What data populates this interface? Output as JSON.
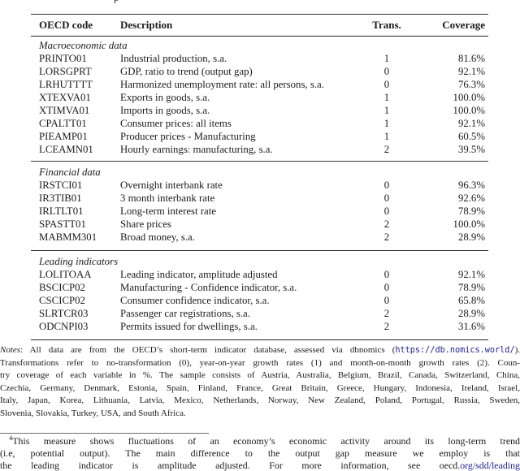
{
  "page": {
    "top_fragment": "p"
  },
  "colors": {
    "text": "#1b1b1b",
    "link_blue": "#23238c",
    "rule_dark": "#2a2a2a"
  },
  "table": {
    "headers": {
      "code": "OECD code",
      "description": "Description",
      "trans": "Trans.",
      "coverage": "Coverage"
    },
    "sections": [
      {
        "label": "Macroeconomic data",
        "rows": [
          {
            "code": "PRINTO01",
            "desc": "Industrial production, s.a.",
            "trans": "1",
            "coverage": "81.6%"
          },
          {
            "code": "LORSGPRT",
            "desc": "GDP, ratio to trend (output gap)",
            "trans": "0",
            "coverage": "92.1%"
          },
          {
            "code": "LRHUTTTT",
            "desc": "Harmonized unemployment rate: all persons, s.a.",
            "trans": "0",
            "coverage": "76.3%"
          },
          {
            "code": "XTEXVA01",
            "desc": "Exports in goods, s.a.",
            "trans": "1",
            "coverage": "100.0%"
          },
          {
            "code": "XTIMVA01",
            "desc": "Imports in goods, s.a.",
            "trans": "1",
            "coverage": "100.0%"
          },
          {
            "code": "CPALTT01",
            "desc": "Consumer prices: all items",
            "trans": "1",
            "coverage": "92.1%"
          },
          {
            "code": "PIEAMP01",
            "desc": "Producer prices - Manufacturing",
            "trans": "1",
            "coverage": "60.5%"
          },
          {
            "code": "LCEAMN01",
            "desc": "Hourly earnings: manufacturing, s.a.",
            "trans": "2",
            "coverage": "39.5%"
          }
        ]
      },
      {
        "label": "Financial data",
        "rows": [
          {
            "code": "IRSTCI01",
            "desc": "Overnight interbank rate",
            "trans": "0",
            "coverage": "96.3%"
          },
          {
            "code": "IR3TIB01",
            "desc": "3 month interbank rate",
            "trans": "0",
            "coverage": "92.6%"
          },
          {
            "code": "IRLTLT01",
            "desc": "Long-term interest rate",
            "trans": "0",
            "coverage": "78.9%"
          },
          {
            "code": "SPASTT01",
            "desc": "Share prices",
            "trans": "2",
            "coverage": "100.0%"
          },
          {
            "code": "MABMM301",
            "desc": "Broad money, s.a.",
            "trans": "2",
            "coverage": "28.9%"
          }
        ]
      },
      {
        "label": "Leading indicators",
        "rows": [
          {
            "code": "LOLITOAA",
            "desc": "Leading indicator, amplitude adjusted",
            "trans": "0",
            "coverage": "92.1%"
          },
          {
            "code": "BSCICP02",
            "desc": "Manufacturing - Confidence indicator, s.a.",
            "trans": "0",
            "coverage": "78.9%"
          },
          {
            "code": "CSCICP02",
            "desc": "Consumer confidence indicator, s.a.",
            "trans": "0",
            "coverage": "65.8%"
          },
          {
            "code": "SLRTCR03",
            "desc": "Passenger car registrations, s.a.",
            "trans": "2",
            "coverage": "28.9%"
          },
          {
            "code": "ODCNPI03",
            "desc": "Permits issued for dwellings, s.a.",
            "trans": "2",
            "coverage": "31.6%"
          }
        ]
      }
    ]
  },
  "notes": {
    "label": "Notes",
    "l1_pre": ": All data are from the OECD’s short-term indicator database, assessed via dbnomics (",
    "l1_url": "https://db.nomics.world/",
    "l1_post": ").",
    "more_lines": [
      "Transformations refer to no-transformation (0), year-on-year growth rates (1) and month-on-month growth rates (2). Coun-",
      "try coverage of each variable in %. The sample consists of Austria, Australia, Belgium, Brazil, Canada, Switzerland, China,",
      "Czechia, Germany, Denmark, Estonia, Spain, Finland, France, Great Britain, Greece, Hungary, Indonesia, Ireland, Israel,",
      "Italy, Japan, Korea, Lithuania, Latvia, Mexico, Netherlands, Norway, New Zealand, Poland, Portugal, Russia, Sweden,",
      "Slovenia, Slovakia, Turkey, USA, and South Africa."
    ]
  },
  "footnote": {
    "marker": "4",
    "line1": "This measure shows fluctuations of an economy’s economic activity around its long-term trend",
    "line2": "(i.e, potential output).  The main difference to the output gap measure we employ is that",
    "line3_pre": "the leading indicator is amplitude adjusted.  For more information, see oecd.",
    "line3_link": "org/sdd/leading"
  }
}
